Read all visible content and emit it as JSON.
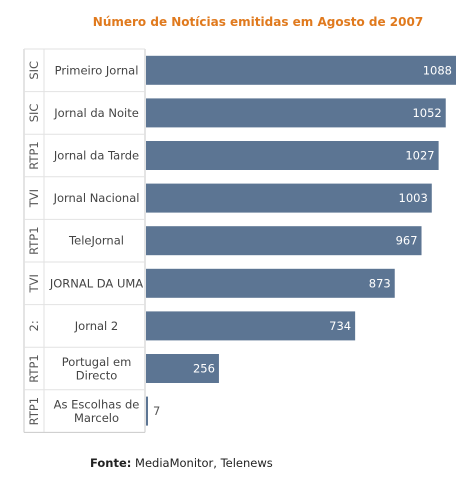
{
  "chart_data": {
    "type": "bar",
    "orientation": "horizontal",
    "title": "Número de Notícias emitidas em Agosto de 2007",
    "groups": [
      "SIC",
      "SIC",
      "RTP1",
      "TVI",
      "RTP1",
      "TVI",
      "2:",
      "RTP1",
      "RTP1"
    ],
    "categories": [
      "Primeiro Jornal",
      "Jornal da Noite",
      "Jornal da Tarde",
      "Jornal Nacional",
      "TeleJornal",
      "JORNAL DA UMA",
      "Jornal 2",
      "Portugal em Directo",
      "As Escolhas de Marcelo"
    ],
    "values": [
      1088,
      1052,
      1027,
      1003,
      967,
      873,
      734,
      256,
      7
    ],
    "xlim": [
      0,
      1088
    ],
    "grid": false,
    "colors": {
      "bar": "#5c7593",
      "label_inside": "#ffffff",
      "label_outside": "#555555"
    }
  },
  "source": {
    "label": "Fonte:",
    "text": "MediaMonitor, Telenews"
  }
}
